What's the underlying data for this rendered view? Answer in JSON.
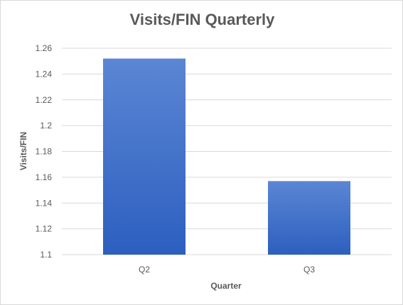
{
  "chart_data": {
    "type": "bar",
    "title": "Visits/FIN Quarterly",
    "xlabel": "Quarter",
    "ylabel": "Visits/FIN",
    "categories": [
      "Q2",
      "Q3"
    ],
    "values": [
      1.252,
      1.157
    ],
    "ylim": [
      1.1,
      1.26
    ],
    "yticks": [
      "1.1",
      "1.12",
      "1.14",
      "1.16",
      "1.18",
      "1.2",
      "1.22",
      "1.24",
      "1.26"
    ],
    "grid": true,
    "legend": "none",
    "colors": {
      "bar_top": "#5b86d4",
      "bar_bottom": "#2c5fbf",
      "grid": "#d9d9d9",
      "text": "#595959"
    }
  }
}
